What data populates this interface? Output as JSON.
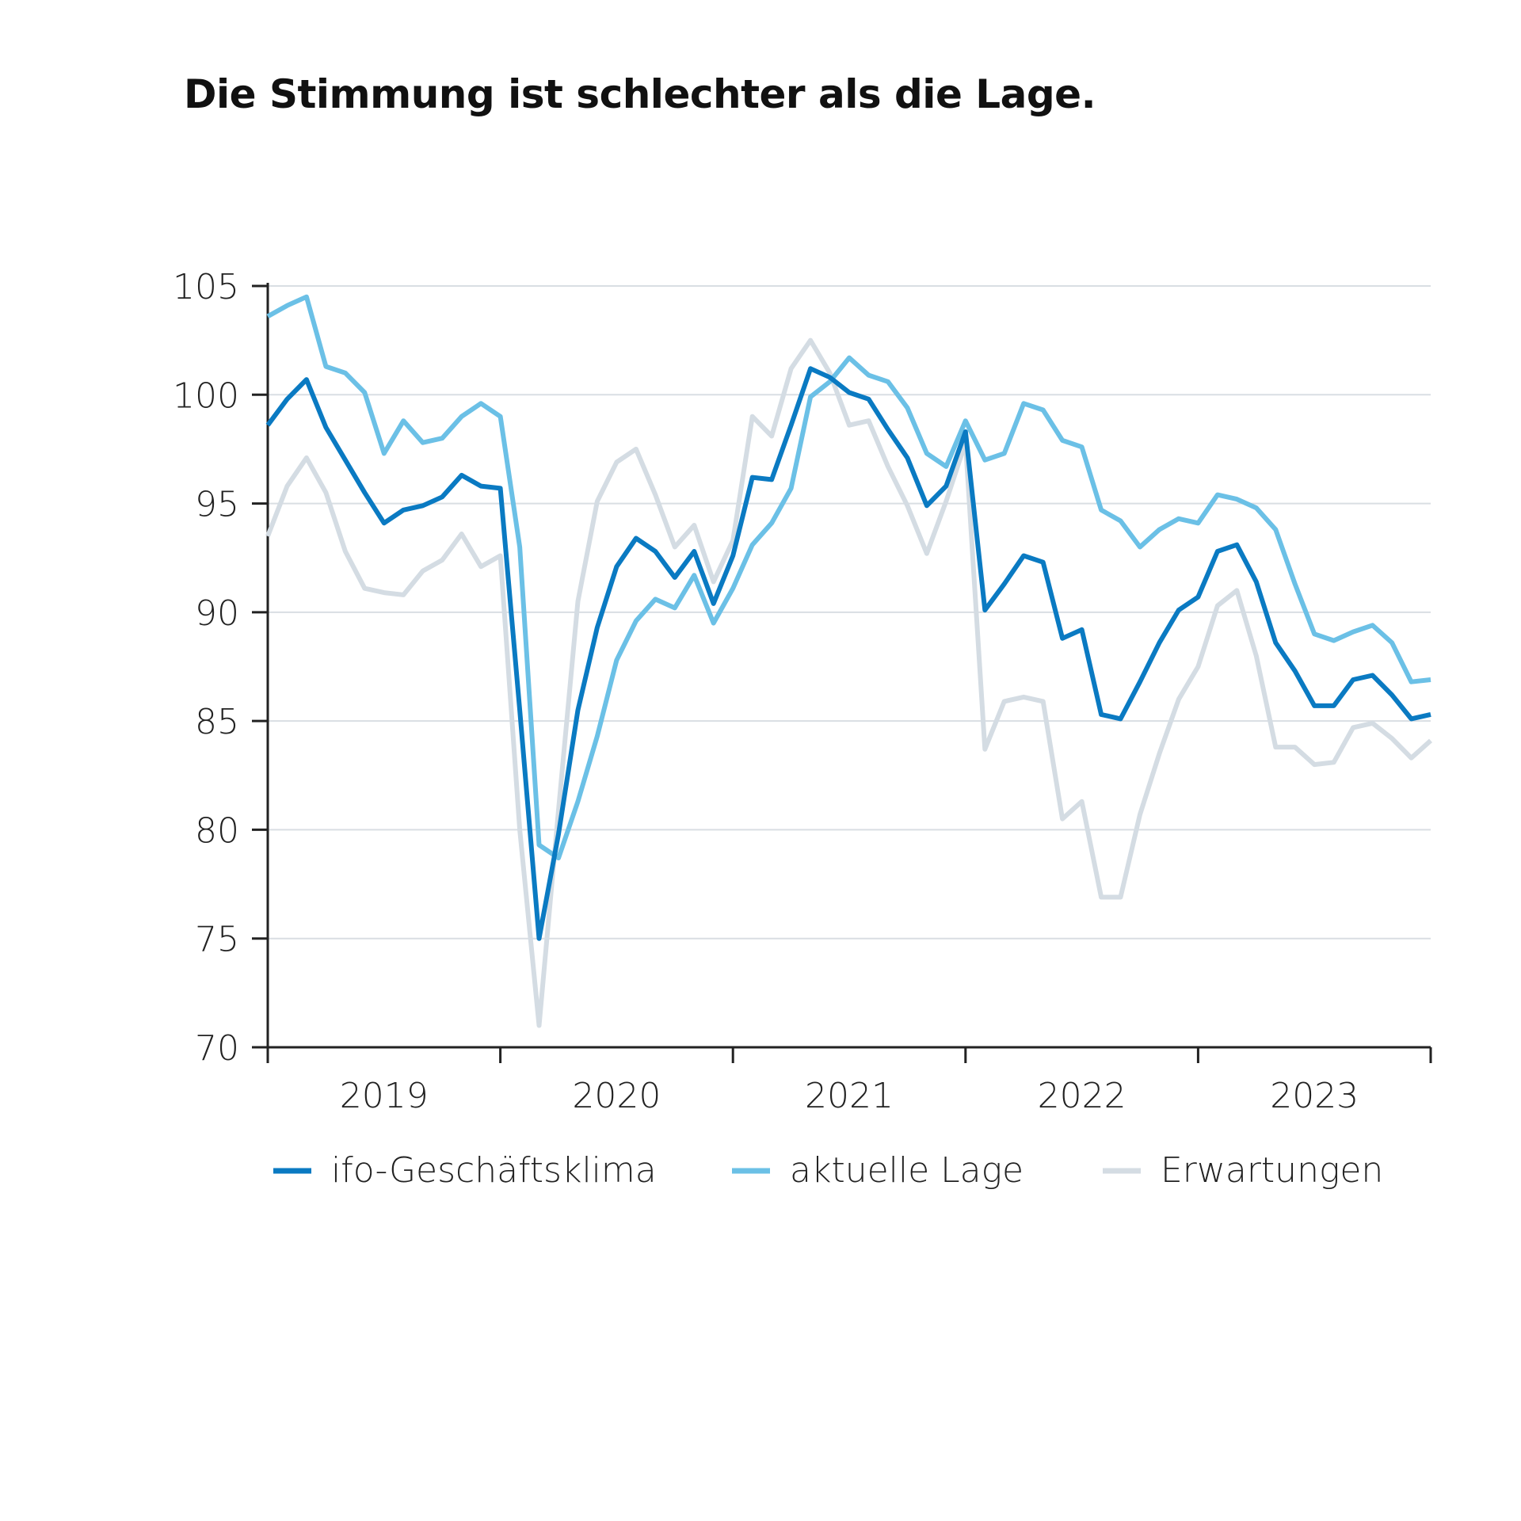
{
  "chart_data": {
    "type": "line",
    "title": "Die Stimmung ist schlechter als die Lage.",
    "xlabel": "",
    "ylabel": "",
    "ylim": [
      70,
      105
    ],
    "y_ticks": [
      70,
      75,
      80,
      85,
      90,
      95,
      100,
      105
    ],
    "x_start": "2019-01",
    "x_end": "2024-01",
    "x_labels": [
      {
        "label": "2019",
        "date": "2019-07"
      },
      {
        "label": "2020",
        "date": "2020-07"
      },
      {
        "label": "2021",
        "date": "2021-07"
      },
      {
        "label": "2022",
        "date": "2022-07"
      },
      {
        "label": "2023",
        "date": "2023-07"
      }
    ],
    "x_ticks": [
      "2019-01",
      "2020-01",
      "2021-01",
      "2022-01",
      "2023-01",
      "2024-01"
    ],
    "grid": "horizontal",
    "legend_position": "bottom",
    "series": [
      {
        "name": "ifo-Geschäftsklima",
        "color": "#0a7ac2",
        "values": [
          98.6,
          99.8,
          100.7,
          98.5,
          97.0,
          95.5,
          94.1,
          94.7,
          94.9,
          95.3,
          96.3,
          95.8,
          95.7,
          85.5,
          75.0,
          79.8,
          85.5,
          89.3,
          92.1,
          93.4,
          92.8,
          91.6,
          92.8,
          90.4,
          92.6,
          96.2,
          96.1,
          98.6,
          101.2,
          100.8,
          100.1,
          99.8,
          98.4,
          97.1,
          94.9,
          95.8,
          98.3,
          90.1,
          91.3,
          92.6,
          92.3,
          88.8,
          89.2,
          85.3,
          85.1,
          86.8,
          88.6,
          90.1,
          90.7,
          92.8,
          93.1,
          91.4,
          88.6,
          87.3,
          85.7,
          85.7,
          86.9,
          87.1,
          86.2,
          85.1,
          85.3
        ]
      },
      {
        "name": "aktuelle Lage",
        "color": "#6bc0e6",
        "values": [
          103.6,
          104.1,
          104.5,
          101.3,
          101.0,
          100.1,
          97.3,
          98.8,
          97.8,
          98.0,
          99.0,
          99.6,
          99.0,
          93.0,
          79.3,
          78.7,
          81.3,
          84.3,
          87.8,
          89.6,
          90.6,
          90.2,
          91.7,
          89.5,
          91.1,
          93.1,
          94.1,
          95.7,
          99.9,
          100.6,
          101.7,
          100.9,
          100.6,
          99.4,
          97.3,
          96.7,
          98.8,
          97.0,
          97.3,
          99.6,
          99.3,
          97.9,
          97.6,
          94.7,
          94.2,
          93.0,
          93.8,
          94.3,
          94.1,
          95.4,
          95.2,
          94.8,
          93.8,
          91.3,
          89.0,
          88.7,
          89.1,
          89.4,
          88.6,
          86.8,
          86.9
        ]
      },
      {
        "name": "Erwartungen",
        "color": "#d4dce3",
        "values": [
          93.5,
          95.8,
          97.1,
          95.5,
          92.8,
          91.1,
          90.9,
          90.8,
          91.9,
          92.4,
          93.6,
          92.1,
          92.6,
          80.0,
          71.0,
          80.9,
          90.5,
          95.1,
          96.9,
          97.5,
          95.4,
          93.0,
          94.0,
          91.4,
          93.3,
          99.0,
          98.1,
          101.2,
          102.5,
          101.0,
          98.6,
          98.8,
          96.7,
          94.9,
          92.7,
          95.1,
          97.8,
          83.7,
          85.9,
          86.1,
          85.9,
          80.5,
          81.3,
          76.9,
          76.9,
          80.7,
          83.5,
          86.0,
          87.5,
          90.3,
          91.0,
          88.0,
          83.8,
          83.8,
          83.0,
          83.1,
          84.7,
          84.9,
          84.2,
          83.3,
          84.1
        ]
      }
    ]
  }
}
